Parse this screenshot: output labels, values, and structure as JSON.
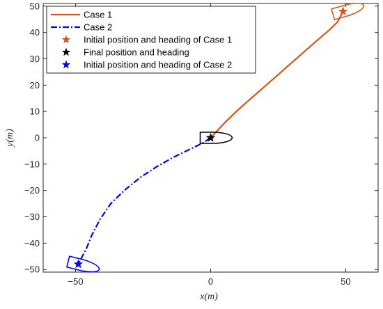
{
  "chart_data": {
    "type": "line",
    "xlabel": "x(m)",
    "ylabel": "y(m)",
    "xlim": [
      -62,
      62
    ],
    "ylim": [
      -51,
      51
    ],
    "x_ticks": [
      -50,
      0,
      50
    ],
    "y_ticks": [
      -50,
      -40,
      -30,
      -20,
      -10,
      0,
      10,
      20,
      30,
      40,
      50
    ],
    "tick_labels_x": [
      "−50",
      "0",
      "50"
    ],
    "tick_labels_y": [
      "−50",
      "−40",
      "−30",
      "−20",
      "−10",
      "0",
      "10",
      "20",
      "30",
      "40",
      "50"
    ],
    "grid": false,
    "legend_position": "top-left",
    "colors": {
      "case1": "#D95319",
      "case2": "#0000FF",
      "final": "#000000",
      "axes": "#262626"
    },
    "series": [
      {
        "name": "Case 1",
        "style": "solid",
        "color": "#D95319",
        "points": [
          [
            0,
            0
          ],
          [
            5,
            5.5
          ],
          [
            10,
            10.5
          ],
          [
            15,
            15
          ],
          [
            20,
            19.5
          ],
          [
            25,
            24
          ],
          [
            30,
            28.5
          ],
          [
            35,
            33
          ],
          [
            40,
            37.5
          ],
          [
            44,
            41
          ],
          [
            47,
            44
          ],
          [
            49,
            48
          ]
        ]
      },
      {
        "name": "Case 2",
        "style": "dashdot",
        "color": "#0000FF",
        "points": [
          [
            0,
            0
          ],
          [
            -3,
            -2
          ],
          [
            -8,
            -4.5
          ],
          [
            -14,
            -7.5
          ],
          [
            -20,
            -11
          ],
          [
            -26,
            -15
          ],
          [
            -32,
            -20
          ],
          [
            -37,
            -25
          ],
          [
            -41,
            -31
          ],
          [
            -44,
            -37
          ],
          [
            -46,
            -42
          ],
          [
            -48,
            -46
          ],
          [
            -49,
            -48
          ]
        ]
      }
    ],
    "markers": [
      {
        "name": "Initial position and heading of Case 1",
        "symbol": "star",
        "color": "#D95319",
        "x": 49,
        "y": 48
      },
      {
        "name": "Final position and heading",
        "symbol": "star",
        "color": "#000000",
        "x": 0,
        "y": 0
      },
      {
        "name": "Initial position and heading of Case 2",
        "symbol": "star",
        "color": "#0000FF",
        "x": -49,
        "y": -48
      }
    ],
    "boats": [
      {
        "label": "case1-initial",
        "x": 49,
        "y": 48,
        "heading_deg": 16,
        "color": "#D95319"
      },
      {
        "label": "final",
        "x": 0,
        "y": 0,
        "heading_deg": 0,
        "color": "#000000"
      },
      {
        "label": "case2-initial",
        "x": -49,
        "y": -48,
        "heading_deg": -14,
        "color": "#0000FF"
      }
    ],
    "legend": [
      {
        "label": "Case 1",
        "kind": "line",
        "style": "solid",
        "color": "#D95319"
      },
      {
        "label": "Case 2",
        "kind": "line",
        "style": "dashdot",
        "color": "#0000FF"
      },
      {
        "label": "Initial position and heading of Case 1",
        "kind": "star",
        "color": "#D95319"
      },
      {
        "label": "Final position and heading",
        "kind": "star",
        "color": "#000000"
      },
      {
        "label": "Initial position and heading of Case 2",
        "kind": "star",
        "color": "#0000FF"
      }
    ]
  }
}
